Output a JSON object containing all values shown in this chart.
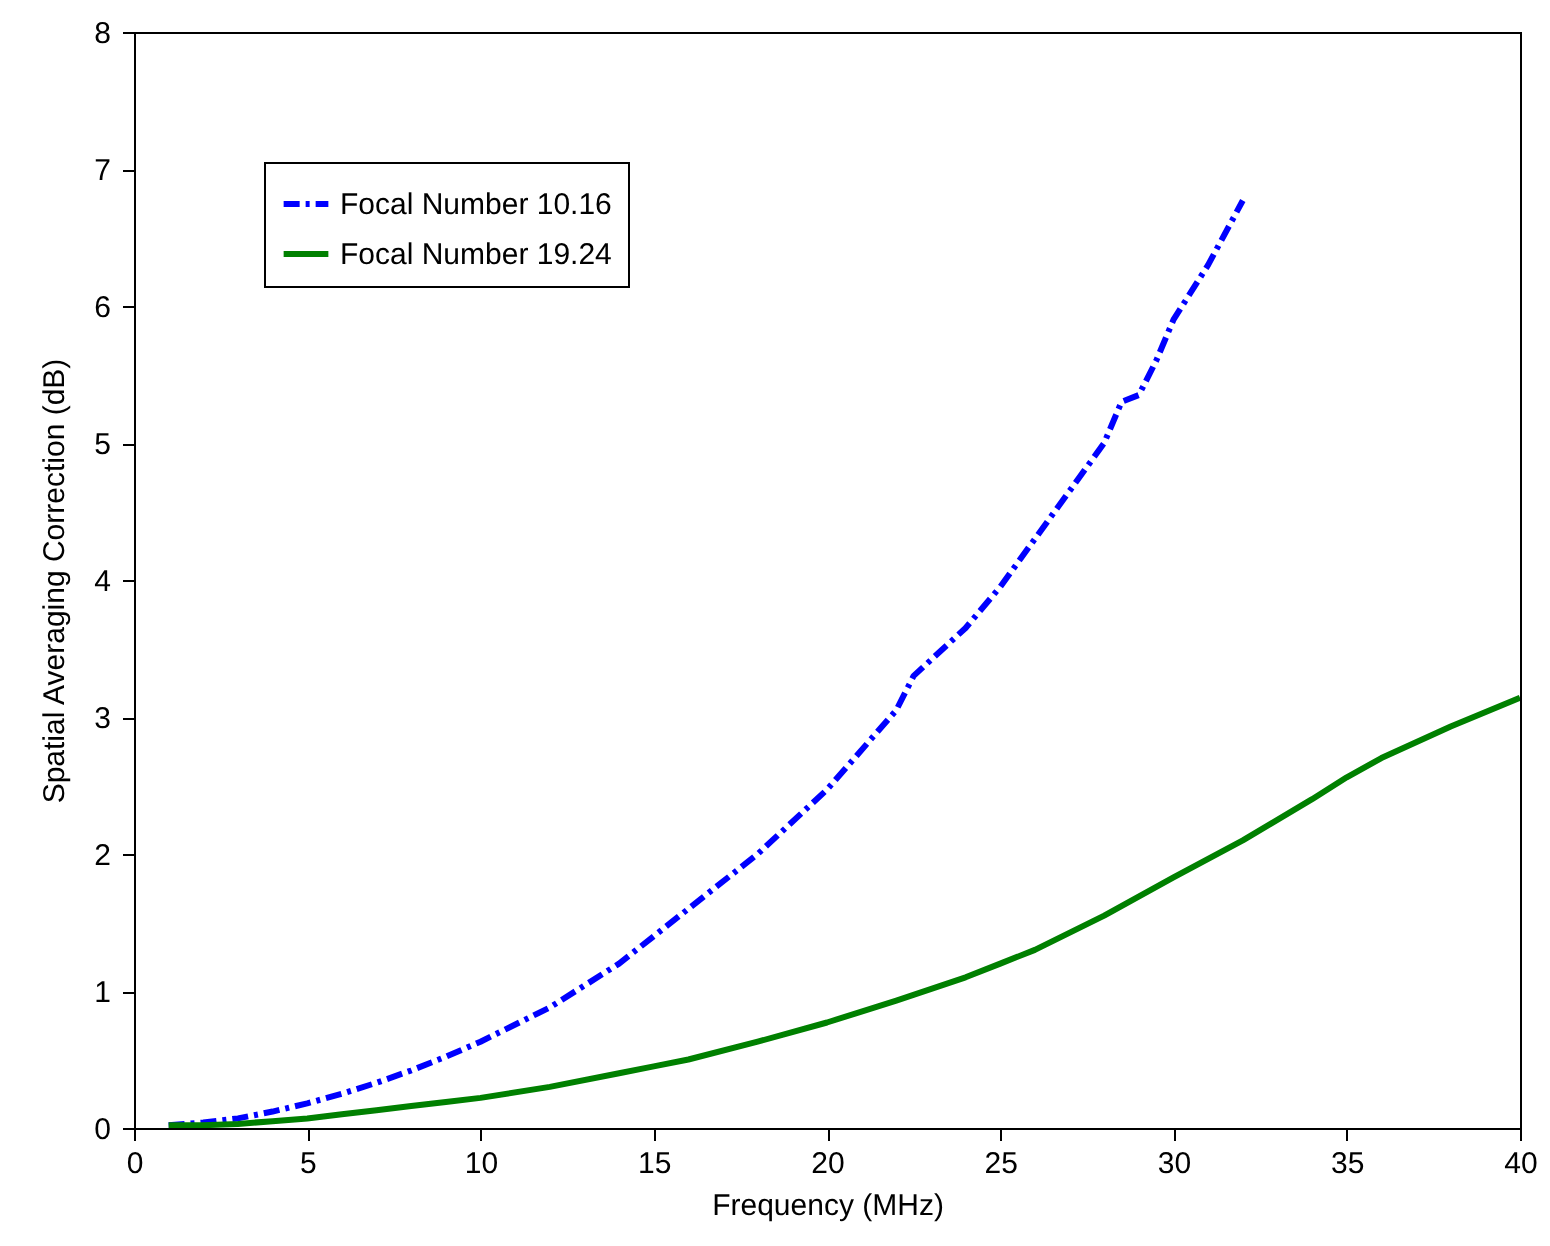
{
  "chart_data": {
    "type": "line",
    "xlabel": "Frequency (MHz)",
    "ylabel": "Spatial Averaging Correction (dB)",
    "xlim": [
      0,
      40
    ],
    "xticks": [
      0,
      5,
      10,
      15,
      20,
      25,
      30,
      35,
      40
    ],
    "ylim": [
      0,
      8
    ],
    "yticks": [
      0,
      1,
      2,
      3,
      4,
      5,
      6,
      7,
      8
    ],
    "legend": "top left",
    "grid": false,
    "series": [
      {
        "name": "Focal Number 10.16",
        "color": "#0000ff",
        "line_style": "dashdot",
        "x": [
          1,
          2,
          3,
          4,
          5,
          6,
          7,
          8,
          9,
          10,
          12,
          14,
          15,
          16,
          18,
          20,
          22,
          22.5,
          24,
          25,
          26,
          27,
          28,
          28.5,
          29,
          29.5,
          30,
          31,
          32
        ],
        "values": [
          0.02,
          0.04,
          0.07,
          0.12,
          0.18,
          0.25,
          0.33,
          0.42,
          0.52,
          0.63,
          0.88,
          1.2,
          1.4,
          1.6,
          2.0,
          2.47,
          3.05,
          3.3,
          3.65,
          3.95,
          4.3,
          4.65,
          5.0,
          5.3,
          5.35,
          5.6,
          5.9,
          6.3,
          6.77
        ]
      },
      {
        "name": "Focal Number 19.24",
        "color": "#008000",
        "line_style": "solid",
        "x": [
          1,
          2,
          3,
          4,
          5,
          6,
          7,
          8,
          9,
          10,
          12,
          14,
          15,
          16,
          18,
          20,
          22,
          24,
          25,
          26,
          28,
          30,
          32,
          34,
          35,
          36,
          38,
          40
        ],
        "values": [
          0.02,
          0.02,
          0.03,
          0.05,
          0.07,
          0.1,
          0.13,
          0.16,
          0.19,
          0.22,
          0.3,
          0.4,
          0.45,
          0.5,
          0.63,
          0.77,
          0.93,
          1.1,
          1.2,
          1.3,
          1.55,
          1.83,
          2.1,
          2.4,
          2.56,
          2.7,
          2.93,
          3.14
        ]
      }
    ]
  }
}
